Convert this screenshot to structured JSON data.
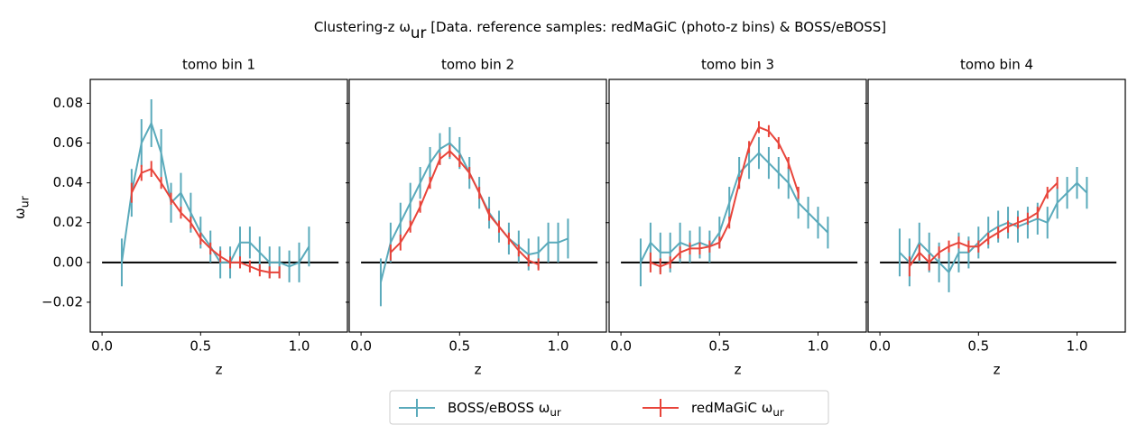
{
  "title": "Clustering-z ω",
  "title_sub": "ur",
  "title_rest": " [Data. reference samples: redMaGiC (photo-z bins) & BOSS/eBOSS]",
  "ylabel": "ω",
  "ylabel_sub": "ur",
  "axes": {
    "xlim": [
      -0.06,
      1.245
    ],
    "ylim": [
      -0.035,
      0.092
    ],
    "xticks": [
      {
        "value": 0,
        "label": "0.0"
      },
      {
        "value": 0.5,
        "label": "0.5"
      },
      {
        "value": 1,
        "label": "1.0"
      }
    ],
    "yticks": [
      {
        "value": -0.02,
        "label": "−0.02"
      },
      {
        "value": 0,
        "label": "0.00"
      },
      {
        "value": 0.02,
        "label": "0.02"
      },
      {
        "value": 0.04,
        "label": "0.04"
      },
      {
        "value": 0.06,
        "label": "0.06"
      },
      {
        "value": 0.08,
        "label": "0.08"
      }
    ],
    "xlabel": "z",
    "hline": {
      "y": 0,
      "xmin": 0,
      "xmax": 1.2
    }
  },
  "legend": [
    {
      "name": "BOSS/eBOSS ω",
      "sub": "ur",
      "color": "#5aaabb"
    },
    {
      "name": "redMaGiC ω",
      "sub": "ur",
      "color": "#e8443a"
    }
  ],
  "chart_data": [
    {
      "type": "line",
      "title": "tomo bin 1",
      "series": [
        {
          "x": [
            0.1,
            0.15,
            0.2,
            0.25,
            0.3,
            0.35,
            0.4,
            0.45,
            0.5,
            0.55,
            0.6,
            0.65,
            0.7,
            0.75,
            0.8,
            0.85,
            0.9,
            0.95,
            1.0,
            1.05
          ],
          "values": [
            0.0,
            0.035,
            0.06,
            0.07,
            0.055,
            0.03,
            0.035,
            0.025,
            0.015,
            0.008,
            0.0,
            0.0,
            0.01,
            0.01,
            0.005,
            0.0,
            0.0,
            -0.002,
            0.0,
            0.008
          ],
          "errors": [
            0.012,
            0.012,
            0.012,
            0.012,
            0.012,
            0.01,
            0.01,
            0.01,
            0.008,
            0.008,
            0.008,
            0.008,
            0.008,
            0.008,
            0.008,
            0.008,
            0.008,
            0.008,
            0.01,
            0.01
          ]
        },
        {
          "x": [
            0.15,
            0.2,
            0.25,
            0.3,
            0.35,
            0.4,
            0.45,
            0.5,
            0.55,
            0.6,
            0.65,
            0.7,
            0.75,
            0.8,
            0.85,
            0.9
          ],
          "values": [
            0.035,
            0.045,
            0.047,
            0.04,
            0.032,
            0.025,
            0.02,
            0.012,
            0.007,
            0.003,
            0.0,
            0.0,
            -0.002,
            -0.004,
            -0.005,
            -0.005
          ],
          "errors": [
            0.005,
            0.004,
            0.004,
            0.003,
            0.003,
            0.003,
            0.003,
            0.003,
            0.003,
            0.003,
            0.003,
            0.003,
            0.003,
            0.003,
            0.003,
            0.003
          ]
        }
      ]
    },
    {
      "type": "line",
      "title": "tomo bin 2",
      "series": [
        {
          "x": [
            0.1,
            0.15,
            0.2,
            0.25,
            0.3,
            0.35,
            0.4,
            0.45,
            0.5,
            0.55,
            0.6,
            0.65,
            0.7,
            0.75,
            0.8,
            0.85,
            0.9,
            0.95,
            1.0,
            1.05
          ],
          "values": [
            -0.01,
            0.01,
            0.02,
            0.03,
            0.04,
            0.05,
            0.057,
            0.06,
            0.055,
            0.045,
            0.035,
            0.025,
            0.018,
            0.012,
            0.008,
            0.004,
            0.005,
            0.01,
            0.01,
            0.012
          ],
          "errors": [
            0.012,
            0.01,
            0.01,
            0.01,
            0.008,
            0.008,
            0.008,
            0.008,
            0.008,
            0.008,
            0.008,
            0.008,
            0.008,
            0.008,
            0.008,
            0.008,
            0.008,
            0.01,
            0.01,
            0.01
          ]
        },
        {
          "x": [
            0.15,
            0.2,
            0.25,
            0.3,
            0.35,
            0.4,
            0.45,
            0.5,
            0.55,
            0.6,
            0.65,
            0.7,
            0.75,
            0.8,
            0.85,
            0.9
          ],
          "values": [
            0.005,
            0.01,
            0.018,
            0.028,
            0.04,
            0.052,
            0.056,
            0.051,
            0.045,
            0.035,
            0.024,
            0.018,
            0.012,
            0.006,
            0.001,
            -0.001
          ],
          "errors": [
            0.004,
            0.004,
            0.003,
            0.003,
            0.003,
            0.003,
            0.003,
            0.003,
            0.003,
            0.003,
            0.003,
            0.003,
            0.003,
            0.003,
            0.003,
            0.003
          ]
        }
      ]
    },
    {
      "type": "line",
      "title": "tomo bin 3",
      "series": [
        {
          "x": [
            0.1,
            0.15,
            0.2,
            0.25,
            0.3,
            0.35,
            0.4,
            0.45,
            0.5,
            0.55,
            0.6,
            0.65,
            0.7,
            0.75,
            0.8,
            0.85,
            0.9,
            0.95,
            1.0,
            1.05
          ],
          "values": [
            0.0,
            0.01,
            0.005,
            0.005,
            0.01,
            0.008,
            0.01,
            0.008,
            0.015,
            0.03,
            0.045,
            0.05,
            0.055,
            0.05,
            0.045,
            0.04,
            0.03,
            0.025,
            0.02,
            0.015
          ],
          "errors": [
            0.012,
            0.01,
            0.01,
            0.01,
            0.01,
            0.008,
            0.008,
            0.008,
            0.008,
            0.008,
            0.008,
            0.008,
            0.008,
            0.008,
            0.008,
            0.008,
            0.008,
            0.008,
            0.008,
            0.008
          ]
        },
        {
          "x": [
            0.15,
            0.2,
            0.25,
            0.3,
            0.35,
            0.4,
            0.45,
            0.5,
            0.55,
            0.6,
            0.65,
            0.7,
            0.75,
            0.8,
            0.85,
            0.9
          ],
          "values": [
            0.0,
            -0.002,
            0.0,
            0.005,
            0.007,
            0.007,
            0.008,
            0.01,
            0.02,
            0.04,
            0.058,
            0.068,
            0.066,
            0.06,
            0.05,
            0.035
          ],
          "errors": [
            0.005,
            0.004,
            0.003,
            0.003,
            0.003,
            0.003,
            0.003,
            0.003,
            0.003,
            0.003,
            0.003,
            0.003,
            0.003,
            0.003,
            0.003,
            0.003
          ]
        }
      ]
    },
    {
      "type": "line",
      "title": "tomo bin 4",
      "series": [
        {
          "x": [
            0.1,
            0.15,
            0.2,
            0.25,
            0.3,
            0.35,
            0.4,
            0.45,
            0.5,
            0.55,
            0.6,
            0.65,
            0.7,
            0.75,
            0.8,
            0.85,
            0.9,
            0.95,
            1.0,
            1.05
          ],
          "values": [
            0.005,
            0.0,
            0.01,
            0.005,
            0.0,
            -0.005,
            0.005,
            0.005,
            0.01,
            0.015,
            0.018,
            0.02,
            0.018,
            0.02,
            0.022,
            0.02,
            0.03,
            0.035,
            0.04,
            0.035
          ],
          "errors": [
            0.012,
            0.012,
            0.01,
            0.01,
            0.01,
            0.01,
            0.01,
            0.008,
            0.008,
            0.008,
            0.008,
            0.008,
            0.008,
            0.008,
            0.008,
            0.008,
            0.008,
            0.008,
            0.008,
            0.008
          ]
        },
        {
          "x": [
            0.15,
            0.2,
            0.25,
            0.3,
            0.35,
            0.4,
            0.45,
            0.5,
            0.55,
            0.6,
            0.65,
            0.7,
            0.75,
            0.8,
            0.85,
            0.9
          ],
          "values": [
            -0.002,
            0.005,
            0.0,
            0.005,
            0.008,
            0.01,
            0.008,
            0.008,
            0.012,
            0.015,
            0.018,
            0.02,
            0.022,
            0.025,
            0.035,
            0.04
          ],
          "errors": [
            0.005,
            0.004,
            0.004,
            0.003,
            0.003,
            0.003,
            0.003,
            0.003,
            0.003,
            0.003,
            0.003,
            0.003,
            0.003,
            0.003,
            0.003,
            0.003
          ]
        }
      ]
    }
  ]
}
